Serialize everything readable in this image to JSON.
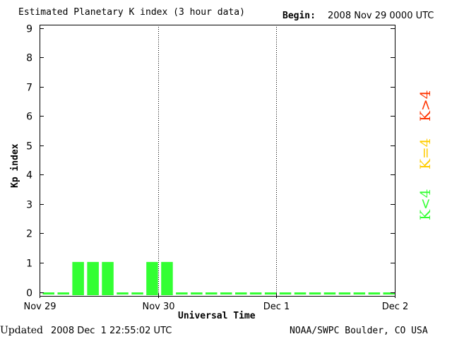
{
  "header": {
    "title": "Estimated Planetary K index (3 hour data)",
    "begin_label": "Begin:",
    "begin_value": "2008 Nov 29 0000 UTC"
  },
  "footer": {
    "updated_label": "Updated",
    "updated_value": "2008 Dec  1 22:55:02 UTC",
    "source": "NOAA/SWPC Boulder, CO USA"
  },
  "legend": {
    "high": {
      "label": "K>4",
      "color": "#ff3300"
    },
    "equal": {
      "label": "K=4",
      "color": "#ffcc00"
    },
    "low": {
      "label": "K<4",
      "color": "#33ff33"
    }
  },
  "chart_data": {
    "type": "bar",
    "xlabel": "Universal Time",
    "ylabel": "Kp index",
    "ylim": [
      0,
      9
    ],
    "yticks": [
      0,
      1,
      2,
      3,
      4,
      5,
      6,
      7,
      8,
      9
    ],
    "xticks": [
      "Nov 29",
      "Nov 30",
      "Dec 1",
      "Dec 2"
    ],
    "day_dividers": [
      "Nov 30",
      "Dec 1"
    ],
    "bar_interval_hours": 3,
    "values": [
      0,
      0,
      1,
      1,
      1,
      0,
      0,
      1,
      1,
      0,
      0,
      0,
      0,
      0,
      0,
      0,
      0,
      0,
      0,
      0,
      0,
      0,
      0,
      0
    ],
    "bar_color": "#33ff33"
  }
}
